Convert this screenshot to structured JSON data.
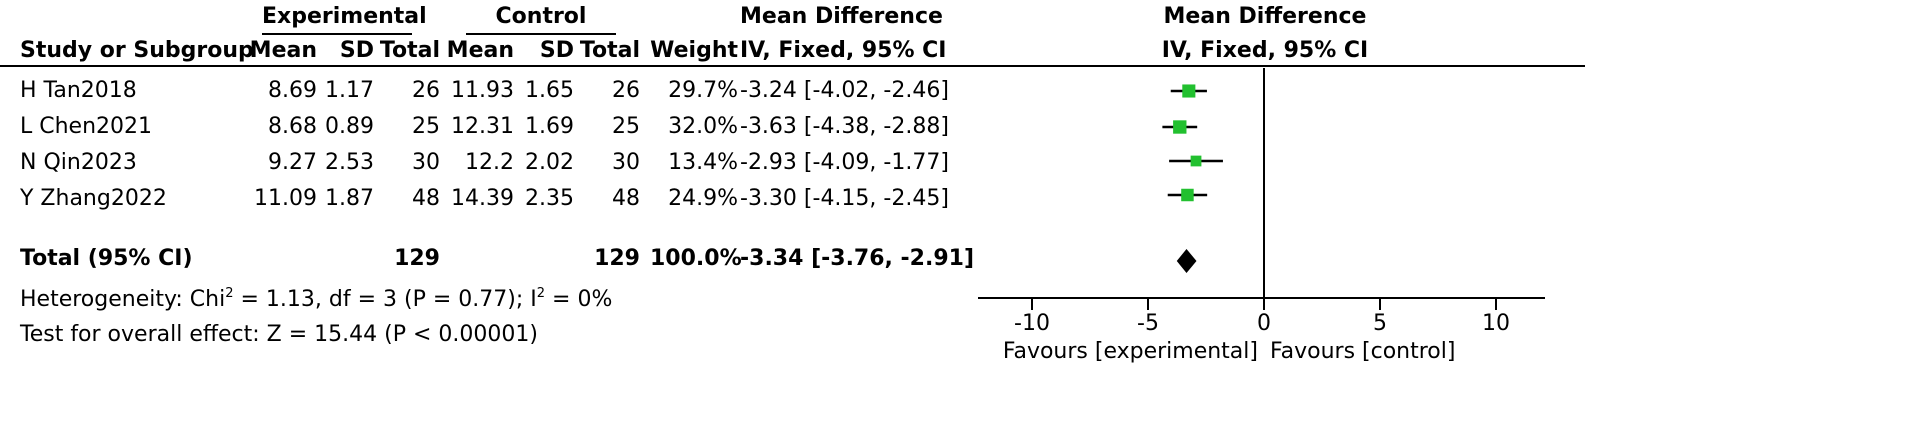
{
  "header": {
    "group_experimental": "Experimental",
    "group_control": "Control",
    "md_title": "Mean Difference",
    "md_sub": "IV, Fixed, 95% CI",
    "plot_title": "Mean Difference",
    "plot_sub": "IV, Fixed, 95% CI",
    "col_study": "Study or Subgroup",
    "col_mean": "Mean",
    "col_sd": "SD",
    "col_total": "Total",
    "col_weight": "Weight"
  },
  "rows": [
    {
      "study": "H Tan2018",
      "e_mean": "8.69",
      "e_sd": "1.17",
      "e_total": "26",
      "c_mean": "11.93",
      "c_sd": "1.65",
      "c_total": "26",
      "weight": "29.7%",
      "ci": "-3.24 [-4.02, -2.46]"
    },
    {
      "study": "L Chen2021",
      "e_mean": "8.68",
      "e_sd": "0.89",
      "e_total": "25",
      "c_mean": "12.31",
      "c_sd": "1.69",
      "c_total": "25",
      "weight": "32.0%",
      "ci": "-3.63 [-4.38, -2.88]"
    },
    {
      "study": "N Qin2023",
      "e_mean": "9.27",
      "e_sd": "2.53",
      "e_total": "30",
      "c_mean": "12.2",
      "c_sd": "2.02",
      "c_total": "30",
      "weight": "13.4%",
      "ci": "-2.93 [-4.09, -1.77]"
    },
    {
      "study": "Y Zhang2022",
      "e_mean": "11.09",
      "e_sd": "1.87",
      "e_total": "48",
      "c_mean": "14.39",
      "c_sd": "2.35",
      "c_total": "48",
      "weight": "24.9%",
      "ci": "-3.30 [-4.15, -2.45]"
    }
  ],
  "total": {
    "label": "Total (95% CI)",
    "e_total": "129",
    "c_total": "129",
    "weight": "100.0%",
    "ci": "-3.34 [-3.76, -2.91]"
  },
  "heterogeneity": {
    "prefix": "Heterogeneity: Chi",
    "sup1": "2",
    "middle": " = 1.13, df = 3 (P = 0.77); I",
    "sup2": "2",
    "suffix": " = 0%"
  },
  "overall_effect": "Test for overall effect: Z = 15.44 (P < 0.00001)",
  "axis": {
    "favours_left": "Favours [experimental]",
    "favours_right": "Favours [control]"
  },
  "colors": {
    "marker": "#22c02f",
    "diamond": "#000000",
    "line": "#000000"
  },
  "chart_data": {
    "type": "forest",
    "xlim": [
      -10,
      10
    ],
    "ticks": [
      -10,
      -5,
      0,
      5,
      10
    ],
    "tick_labels": [
      "-10",
      "-5",
      "0",
      "5",
      "10"
    ],
    "studies": [
      {
        "name": "H Tan2018",
        "md": -3.24,
        "lo": -4.02,
        "hi": -2.46,
        "weight": 29.7
      },
      {
        "name": "L Chen2021",
        "md": -3.63,
        "lo": -4.38,
        "hi": -2.88,
        "weight": 32.0
      },
      {
        "name": "N Qin2023",
        "md": -2.93,
        "lo": -4.09,
        "hi": -1.77,
        "weight": 13.4
      },
      {
        "name": "Y Zhang2022",
        "md": -3.3,
        "lo": -4.15,
        "hi": -2.45,
        "weight": 24.9
      }
    ],
    "pooled": {
      "md": -3.34,
      "lo": -3.76,
      "hi": -2.91
    }
  }
}
